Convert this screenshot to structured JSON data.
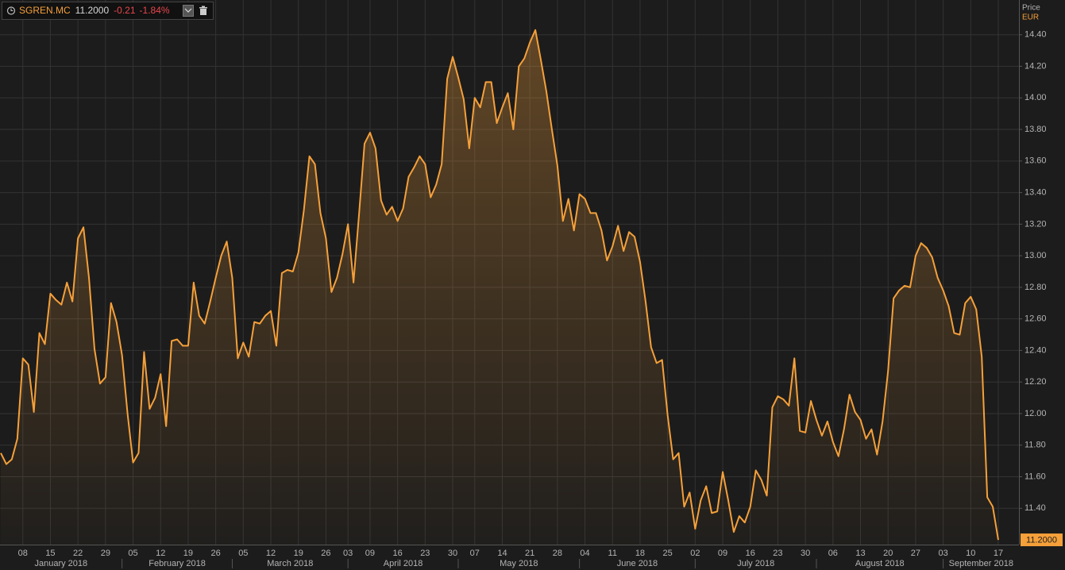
{
  "header": {
    "symbol": "SGREN.MC",
    "price": "11.2000",
    "change": "-0.21",
    "change_pct": "-1.84%"
  },
  "chart_data": {
    "type": "area",
    "y_title": "Price",
    "y_unit": "EUR",
    "color": "#f5a03a",
    "grid": true,
    "last_value_label": "11.2000",
    "x": [
      "2018-01-02",
      "2018-01-03",
      "2018-01-04",
      "2018-01-05",
      "2018-01-08",
      "2018-01-09",
      "2018-01-10",
      "2018-01-11",
      "2018-01-12",
      "2018-01-15",
      "2018-01-16",
      "2018-01-17",
      "2018-01-18",
      "2018-01-19",
      "2018-01-22",
      "2018-01-23",
      "2018-01-24",
      "2018-01-25",
      "2018-01-26",
      "2018-01-29",
      "2018-01-30",
      "2018-01-31",
      "2018-02-01",
      "2018-02-02",
      "2018-02-05",
      "2018-02-06",
      "2018-02-07",
      "2018-02-08",
      "2018-02-09",
      "2018-02-12",
      "2018-02-13",
      "2018-02-14",
      "2018-02-15",
      "2018-02-16",
      "2018-02-19",
      "2018-02-20",
      "2018-02-21",
      "2018-02-22",
      "2018-02-23",
      "2018-02-26",
      "2018-02-27",
      "2018-02-28",
      "2018-03-01",
      "2018-03-02",
      "2018-03-05",
      "2018-03-06",
      "2018-03-07",
      "2018-03-08",
      "2018-03-09",
      "2018-03-12",
      "2018-03-13",
      "2018-03-14",
      "2018-03-15",
      "2018-03-16",
      "2018-03-19",
      "2018-03-20",
      "2018-03-21",
      "2018-03-22",
      "2018-03-23",
      "2018-03-26",
      "2018-03-27",
      "2018-03-28",
      "2018-03-29",
      "2018-04-03",
      "2018-04-04",
      "2018-04-05",
      "2018-04-06",
      "2018-04-09",
      "2018-04-10",
      "2018-04-11",
      "2018-04-12",
      "2018-04-13",
      "2018-04-16",
      "2018-04-17",
      "2018-04-18",
      "2018-04-19",
      "2018-04-20",
      "2018-04-23",
      "2018-04-24",
      "2018-04-25",
      "2018-04-26",
      "2018-04-27",
      "2018-04-30",
      "2018-05-02",
      "2018-05-03",
      "2018-05-04",
      "2018-05-07",
      "2018-05-08",
      "2018-05-09",
      "2018-05-10",
      "2018-05-11",
      "2018-05-14",
      "2018-05-15",
      "2018-05-16",
      "2018-05-17",
      "2018-05-18",
      "2018-05-21",
      "2018-05-22",
      "2018-05-23",
      "2018-05-24",
      "2018-05-25",
      "2018-05-28",
      "2018-05-29",
      "2018-05-30",
      "2018-05-31",
      "2018-06-01",
      "2018-06-04",
      "2018-06-05",
      "2018-06-06",
      "2018-06-07",
      "2018-06-08",
      "2018-06-11",
      "2018-06-12",
      "2018-06-13",
      "2018-06-14",
      "2018-06-15",
      "2018-06-18",
      "2018-06-19",
      "2018-06-20",
      "2018-06-21",
      "2018-06-22",
      "2018-06-25",
      "2018-06-26",
      "2018-06-27",
      "2018-06-28",
      "2018-06-29",
      "2018-07-02",
      "2018-07-03",
      "2018-07-04",
      "2018-07-05",
      "2018-07-06",
      "2018-07-09",
      "2018-07-10",
      "2018-07-11",
      "2018-07-12",
      "2018-07-13",
      "2018-07-16",
      "2018-07-17",
      "2018-07-18",
      "2018-07-19",
      "2018-07-20",
      "2018-07-23",
      "2018-07-24",
      "2018-07-25",
      "2018-07-26",
      "2018-07-27",
      "2018-07-30",
      "2018-07-31",
      "2018-08-01",
      "2018-08-02",
      "2018-08-03",
      "2018-08-06",
      "2018-08-07",
      "2018-08-08",
      "2018-08-09",
      "2018-08-10",
      "2018-08-13",
      "2018-08-14",
      "2018-08-15",
      "2018-08-16",
      "2018-08-17",
      "2018-08-20",
      "2018-08-21",
      "2018-08-22",
      "2018-08-23",
      "2018-08-24",
      "2018-08-27",
      "2018-08-28",
      "2018-08-29",
      "2018-08-30",
      "2018-08-31",
      "2018-09-03",
      "2018-09-04",
      "2018-09-05",
      "2018-09-06",
      "2018-09-07",
      "2018-09-10",
      "2018-09-11",
      "2018-09-12",
      "2018-09-13",
      "2018-09-14",
      "2018-09-17"
    ],
    "values": [
      11.75,
      11.68,
      11.71,
      11.84,
      12.35,
      12.31,
      12.01,
      12.51,
      12.44,
      12.76,
      12.72,
      12.69,
      12.83,
      12.71,
      13.11,
      13.18,
      12.86,
      12.41,
      12.19,
      12.23,
      12.7,
      12.58,
      12.37,
      12.0,
      11.69,
      11.75,
      12.39,
      12.03,
      12.1,
      12.25,
      11.92,
      12.46,
      12.47,
      12.43,
      12.43,
      12.83,
      12.62,
      12.57,
      12.71,
      12.86,
      13.0,
      13.09,
      12.86,
      12.35,
      12.45,
      12.36,
      12.58,
      12.57,
      12.62,
      12.65,
      12.43,
      12.89,
      12.91,
      12.9,
      13.02,
      13.29,
      13.63,
      13.58,
      13.27,
      13.11,
      12.77,
      12.86,
      13.01,
      13.2,
      12.83,
      13.26,
      13.71,
      13.78,
      13.68,
      13.35,
      13.26,
      13.31,
      13.22,
      13.3,
      13.5,
      13.56,
      13.63,
      13.58,
      13.37,
      13.45,
      13.58,
      14.12,
      14.26,
      14.13,
      13.99,
      13.68,
      14.0,
      13.94,
      14.1,
      14.1,
      13.84,
      13.94,
      14.03,
      13.8,
      14.2,
      14.25,
      14.35,
      14.43,
      14.24,
      14.04,
      13.8,
      13.57,
      13.22,
      13.36,
      13.16,
      13.39,
      13.36,
      13.27,
      13.27,
      13.16,
      12.97,
      13.06,
      13.19,
      13.03,
      13.15,
      13.12,
      12.96,
      12.71,
      12.42,
      12.32,
      12.34,
      11.99,
      11.71,
      11.75,
      11.41,
      11.5,
      11.27,
      11.45,
      11.54,
      11.37,
      11.38,
      11.63,
      11.45,
      11.25,
      11.35,
      11.31,
      11.41,
      11.64,
      11.58,
      11.48,
      12.04,
      12.11,
      12.09,
      12.05,
      12.35,
      11.89,
      11.88,
      12.08,
      11.96,
      11.86,
      11.95,
      11.82,
      11.73,
      11.9,
      12.12,
      12.01,
      11.96,
      11.84,
      11.9,
      11.74,
      11.95,
      12.27,
      12.73,
      12.78,
      12.81,
      12.8,
      13.0,
      13.08,
      13.05,
      12.99,
      12.86,
      12.78,
      12.68,
      12.51,
      12.5,
      12.7,
      12.74,
      12.66,
      12.36,
      11.47,
      11.41,
      11.2
    ],
    "ylim": [
      11.17,
      14.62
    ],
    "yticks": [
      {
        "value": 11.4,
        "label": "11.40"
      },
      {
        "value": 11.6,
        "label": "11.60"
      },
      {
        "value": 11.8,
        "label": "11.80"
      },
      {
        "value": 12.0,
        "label": "12.00"
      },
      {
        "value": 12.2,
        "label": "12.20"
      },
      {
        "value": 12.4,
        "label": "12.40"
      },
      {
        "value": 12.6,
        "label": "12.60"
      },
      {
        "value": 12.8,
        "label": "12.80"
      },
      {
        "value": 13.0,
        "label": "13.00"
      },
      {
        "value": 13.2,
        "label": "13.20"
      },
      {
        "value": 13.4,
        "label": "13.40"
      },
      {
        "value": 13.6,
        "label": "13.60"
      },
      {
        "value": 13.8,
        "label": "13.80"
      },
      {
        "value": 14.0,
        "label": "14.00"
      },
      {
        "value": 14.2,
        "label": "14.20"
      },
      {
        "value": 14.4,
        "label": "14.40"
      }
    ],
    "xticks": [
      {
        "value": "2018-01-08",
        "label": "08"
      },
      {
        "value": "2018-01-15",
        "label": "15"
      },
      {
        "value": "2018-01-22",
        "label": "22"
      },
      {
        "value": "2018-01-29",
        "label": "29"
      },
      {
        "value": "2018-02-05",
        "label": "05"
      },
      {
        "value": "2018-02-12",
        "label": "12"
      },
      {
        "value": "2018-02-19",
        "label": "19"
      },
      {
        "value": "2018-02-26",
        "label": "26"
      },
      {
        "value": "2018-03-05",
        "label": "05"
      },
      {
        "value": "2018-03-12",
        "label": "12"
      },
      {
        "value": "2018-03-19",
        "label": "19"
      },
      {
        "value": "2018-03-26",
        "label": "26"
      },
      {
        "value": "2018-04-03",
        "label": "03"
      },
      {
        "value": "2018-04-09",
        "label": "09"
      },
      {
        "value": "2018-04-16",
        "label": "16"
      },
      {
        "value": "2018-04-23",
        "label": "23"
      },
      {
        "value": "2018-04-30",
        "label": "30"
      },
      {
        "value": "2018-05-07",
        "label": "07"
      },
      {
        "value": "2018-05-14",
        "label": "14"
      },
      {
        "value": "2018-05-21",
        "label": "21"
      },
      {
        "value": "2018-05-28",
        "label": "28"
      },
      {
        "value": "2018-06-04",
        "label": "04"
      },
      {
        "value": "2018-06-11",
        "label": "11"
      },
      {
        "value": "2018-06-18",
        "label": "18"
      },
      {
        "value": "2018-06-25",
        "label": "25"
      },
      {
        "value": "2018-07-02",
        "label": "02"
      },
      {
        "value": "2018-07-09",
        "label": "09"
      },
      {
        "value": "2018-07-16",
        "label": "16"
      },
      {
        "value": "2018-07-23",
        "label": "23"
      },
      {
        "value": "2018-07-30",
        "label": "30"
      },
      {
        "value": "2018-08-06",
        "label": "06"
      },
      {
        "value": "2018-08-13",
        "label": "13"
      },
      {
        "value": "2018-08-20",
        "label": "20"
      },
      {
        "value": "2018-08-27",
        "label": "27"
      },
      {
        "value": "2018-09-03",
        "label": "03"
      },
      {
        "value": "2018-09-10",
        "label": "10"
      },
      {
        "value": "2018-09-17",
        "label": "17"
      }
    ],
    "months": [
      {
        "value": "2018-01",
        "label": "January 2018"
      },
      {
        "value": "2018-02",
        "label": "February 2018"
      },
      {
        "value": "2018-03",
        "label": "March 2018"
      },
      {
        "value": "2018-04",
        "label": "April 2018"
      },
      {
        "value": "2018-05",
        "label": "May 2018"
      },
      {
        "value": "2018-06",
        "label": "June 2018"
      },
      {
        "value": "2018-07",
        "label": "July 2018"
      },
      {
        "value": "2018-08",
        "label": "August 2018"
      },
      {
        "value": "2018-09",
        "label": "September 2018"
      }
    ]
  }
}
